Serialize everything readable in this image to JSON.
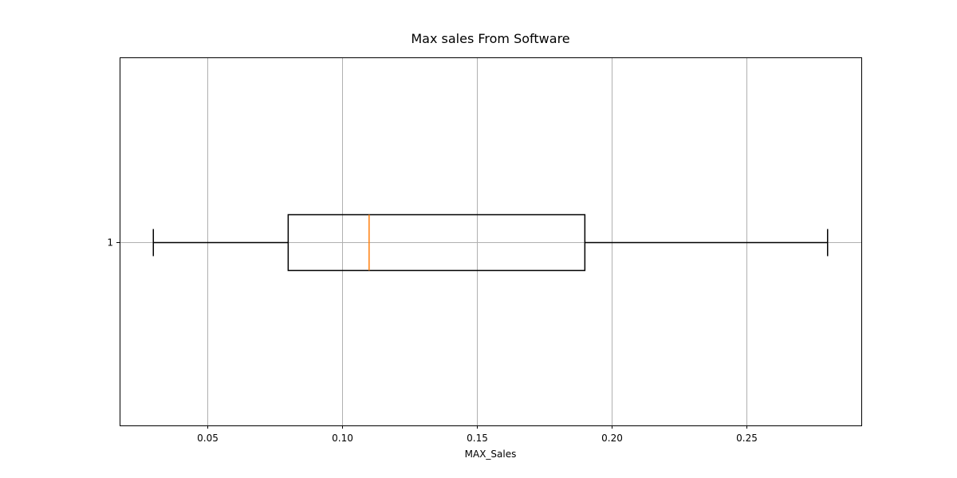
{
  "colors": {
    "box": "#000000",
    "median": "#ff7f0e",
    "grid": "#b0b0b0",
    "axes": "#000000",
    "background": "#ffffff"
  },
  "chart_data": {
    "type": "box",
    "orientation": "horizontal",
    "title": "Max sales From Software",
    "xlabel": "MAX_Sales",
    "ylabel": "",
    "xlim": [
      0.0175,
      0.2925
    ],
    "xticks": [
      {
        "value": 0.05,
        "label": "0.05"
      },
      {
        "value": 0.1,
        "label": "0.10"
      },
      {
        "value": 0.15,
        "label": "0.15"
      },
      {
        "value": 0.2,
        "label": "0.20"
      },
      {
        "value": 0.25,
        "label": "0.25"
      }
    ],
    "yticks": [
      {
        "value": 1,
        "label": "1"
      }
    ],
    "grid": true,
    "boxes": [
      {
        "position": 1,
        "whisker_low": 0.03,
        "q1": 0.08,
        "median": 0.11,
        "q3": 0.19,
        "whisker_high": 0.28,
        "fliers": []
      }
    ]
  }
}
